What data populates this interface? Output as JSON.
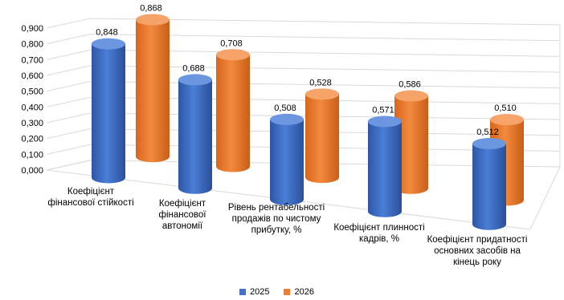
{
  "chart_data": {
    "type": "bar",
    "categories": [
      "Коефіцієнт фінансової стійкості",
      "Коефіцієнт фінансової автономії",
      "Рівень рентабельності продажів по чистому прибутку, %",
      "Коефіцієнт плинності кадрів, %",
      "Коефіцієнт придатності основних засобів на кінець року"
    ],
    "series": [
      {
        "name": "2025",
        "values": [
          0.848,
          0.688,
          0.508,
          0.571,
          0.512
        ],
        "labels": [
          "0,848",
          "0,688",
          "0,508",
          "0,571",
          "0,512"
        ],
        "color": "#4472C4"
      },
      {
        "name": "2026",
        "values": [
          0.868,
          0.708,
          0.528,
          0.586,
          0.51
        ],
        "labels": [
          "0,868",
          "0,708",
          "0,528",
          "0,586",
          "0,510"
        ],
        "color": "#ED7D31"
      }
    ],
    "yticks": [
      "0,000",
      "0,100",
      "0,200",
      "0,300",
      "0,400",
      "0,500",
      "0,600",
      "0,700",
      "0,800",
      "0,900"
    ],
    "ylim": [
      0,
      0.9
    ],
    "grid": true,
    "legend_position": "bottom"
  }
}
